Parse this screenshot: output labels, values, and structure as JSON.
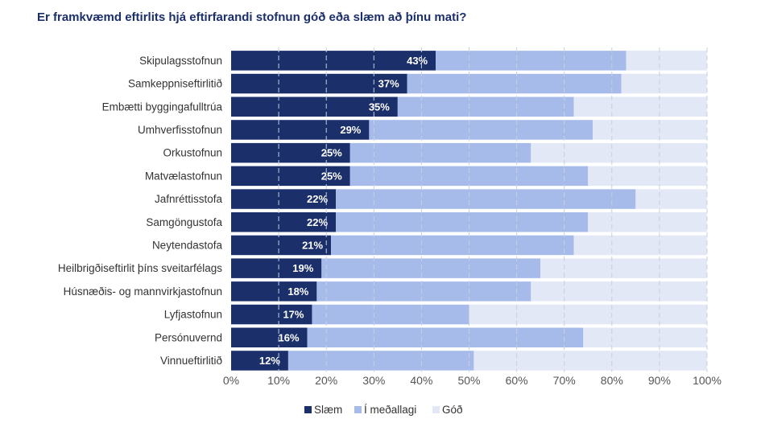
{
  "colors": {
    "slaem": "#1b2f6b",
    "medallagi": "#a7bbeb",
    "god": "#e2e8f6",
    "grid": "#c9cfdc",
    "title": "#1b2f6b"
  },
  "chart_data": {
    "type": "bar",
    "orientation": "horizontal",
    "stacked": true,
    "percent": true,
    "title": "Er framkvæmd eftirlits hjá eftirfarandi stofnun góð eða slæm að þínu mati?",
    "categories": [
      "Skipulagsstofnun",
      "Samkeppniseftirlitið",
      "Embætti byggingafulltrúa",
      "Umhverfisstofnun",
      "Orkustofnun",
      "Matvælastofnun",
      "Jafnréttisstofa",
      "Samgöngustofa",
      "Neytendastofa",
      "Heilbrigðiseftirlit þíns sveitarfélags",
      "Húsnæðis- og mannvirkjastofnun",
      "Lyfjastofnun",
      "Persónuvernd",
      "Vinnueftirlitið"
    ],
    "series": [
      {
        "name": "Slæm",
        "values": [
          43,
          37,
          35,
          29,
          25,
          25,
          22,
          22,
          21,
          19,
          18,
          17,
          16,
          12
        ]
      },
      {
        "name": "Í meðallagi",
        "values": [
          40,
          45,
          37,
          47,
          38,
          50,
          63,
          53,
          51,
          46,
          45,
          33,
          58,
          39
        ]
      },
      {
        "name": "Góð",
        "values": [
          17,
          18,
          28,
          24,
          37,
          25,
          15,
          25,
          28,
          35,
          37,
          50,
          26,
          49
        ]
      }
    ],
    "data_labels": [
      "43%",
      "37%",
      "35%",
      "29%",
      "25%",
      "25%",
      "22%",
      "22%",
      "21%",
      "19%",
      "18%",
      "17%",
      "16%",
      "12%"
    ],
    "xticks": [
      "0%",
      "10%",
      "20%",
      "30%",
      "40%",
      "50%",
      "60%",
      "70%",
      "80%",
      "90%",
      "100%"
    ],
    "xlim": [
      0,
      100
    ],
    "grid": "vertical dashed",
    "legend_position": "bottom"
  }
}
